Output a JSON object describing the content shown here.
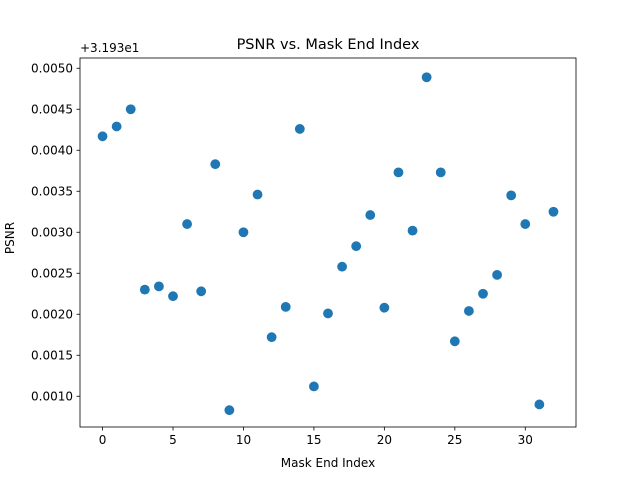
{
  "chart_data": {
    "type": "scatter",
    "title": "PSNR vs. Mask End Index",
    "xlabel": "Mask End Index",
    "ylabel": "PSNR",
    "y_offset_label": "+3.193e1",
    "xlim": [
      -1.6,
      33.6
    ],
    "ylim": [
      0.000625,
      0.005125
    ],
    "x_ticks": [
      0,
      5,
      10,
      15,
      20,
      25,
      30
    ],
    "x_tick_labels": [
      "0",
      "5",
      "10",
      "15",
      "20",
      "25",
      "30"
    ],
    "y_ticks": [
      0.001,
      0.0015,
      0.002,
      0.0025,
      0.003,
      0.0035,
      0.004,
      0.0045,
      0.005
    ],
    "y_tick_labels": [
      "0.0010",
      "0.0015",
      "0.0020",
      "0.0025",
      "0.0030",
      "0.0035",
      "0.0040",
      "0.0045",
      "0.0050"
    ],
    "grid": false,
    "marker_color": "#1f77b4",
    "series": [
      {
        "x": [
          0,
          1,
          2,
          3,
          4,
          5,
          6,
          7,
          8,
          9,
          10,
          11,
          12,
          13,
          14,
          15,
          16,
          17,
          18,
          19,
          20,
          21,
          22,
          23,
          24,
          25,
          26,
          27,
          28,
          29,
          30,
          31,
          32
        ],
        "y": [
          0.00417,
          0.00429,
          0.0045,
          0.0023,
          0.00234,
          0.00222,
          0.0031,
          0.00228,
          0.00383,
          0.00083,
          0.003,
          0.00346,
          0.00172,
          0.00209,
          0.00426,
          0.00112,
          0.00201,
          0.00258,
          0.00283,
          0.00321,
          0.00208,
          0.00373,
          0.00302,
          0.00489,
          0.00373,
          0.00167,
          0.00204,
          0.00225,
          0.00248,
          0.00345,
          0.0031,
          0.0009,
          0.00325
        ]
      }
    ]
  }
}
